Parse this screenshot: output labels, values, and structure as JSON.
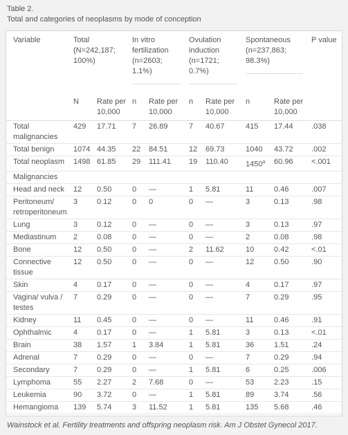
{
  "header": {
    "label": "Table 2.",
    "title": "Total and categories of neoplasms by mode of conception"
  },
  "table": {
    "group_headers": [
      "Variable",
      "Total (N=242,187; 100%)",
      "In vitro fertilization (n=2603; 1.1%)",
      "Ovulation induction (n=1721; 0.7%)",
      "Spontaneous (n=237,863; 98.3%)",
      "P value"
    ],
    "sub_headers": [
      "N",
      "Rate per 10,000",
      "n",
      "Rate per 10,000",
      "n",
      "Rate per 10,000",
      "n",
      "Rate per 10,000"
    ],
    "rows": [
      [
        "Total malignancies",
        "429",
        "17.71",
        "7",
        "26.89",
        "7",
        "40.67",
        "415",
        "17.44",
        ".038"
      ],
      [
        "Total benign",
        "1074",
        "44.35",
        "22",
        "84.51",
        "12",
        "69.73",
        "1040",
        "43.72",
        ".002"
      ],
      [
        "Total neoplasm",
        "1498",
        "61.85",
        "29",
        "111.41",
        "19",
        "110.40",
        {
          "text": "1450",
          "sup": "a"
        },
        "60.96",
        "<.001"
      ],
      [
        "Malignancies"
      ],
      [
        "Head and neck",
        "12",
        "0.50",
        "0",
        "—",
        "1",
        "5.81",
        "11",
        "0.46",
        ".007"
      ],
      [
        "Peritoneum/ retroperitoneum",
        "3",
        "0.12",
        "0",
        "0",
        "0",
        "—",
        "3",
        "0.13",
        ".98"
      ],
      [
        "Lung",
        "3",
        "0.12",
        "0",
        "—",
        "0",
        "—",
        "3",
        "0.13",
        ".97"
      ],
      [
        "Mediastinum",
        "2",
        "0.08",
        "0",
        "—",
        "0",
        "—",
        "2",
        "0.08",
        ".98"
      ],
      [
        "Bone",
        "12",
        "0.50",
        "0",
        "—",
        "2",
        "11.62",
        "10",
        "0.42",
        "<.01"
      ],
      [
        "Connective tissue",
        "12",
        "0.50",
        "0",
        "—",
        "0",
        "—",
        "12",
        "0.50",
        ".90"
      ],
      [
        "Skin",
        "4",
        "0.17",
        "0",
        "—",
        "0",
        "—",
        "4",
        "0.17",
        ".97"
      ],
      [
        "Vagina/ vulva / testes",
        "7",
        "0.29",
        "0",
        "—",
        "0",
        "—",
        "7",
        "0.29",
        ".95"
      ],
      [
        "Kidney",
        "11",
        "0.45",
        "0",
        "—",
        "0",
        "—",
        "11",
        "0.46",
        ".91"
      ],
      [
        "Ophthalmic",
        "4",
        "0.17",
        "0",
        "—",
        "1",
        "5.81",
        "3",
        "0.13",
        "<.01"
      ],
      [
        "Brain",
        "38",
        "1.57",
        "1",
        "3.84",
        "1",
        "5.81",
        "36",
        "1.51",
        ".24"
      ],
      [
        "Adrenal",
        "7",
        "0.29",
        "0",
        "—",
        "0",
        "—",
        "7",
        "0.29",
        ".94"
      ],
      [
        "Secondary",
        "7",
        "0.29",
        "0",
        "—",
        "1",
        "5.81",
        "6",
        "0.25",
        ".006"
      ],
      [
        "Lymphoma",
        "55",
        "2.27",
        "2",
        "7.68",
        "0",
        "—",
        "53",
        "2.23",
        ".15"
      ],
      [
        "Leukemia",
        "90",
        "3.72",
        "0",
        "—",
        "1",
        "5.81",
        "89",
        "3.74",
        ".56"
      ],
      [
        "Hemangioma",
        "139",
        "5.74",
        "3",
        "11.52",
        "1",
        "5.81",
        "135",
        "5.68",
        ".46"
      ]
    ]
  },
  "footer": "Wainstock et al. Fertility treatments and offspring neoplasm risk. Am J Obstet Gynecol 2017."
}
